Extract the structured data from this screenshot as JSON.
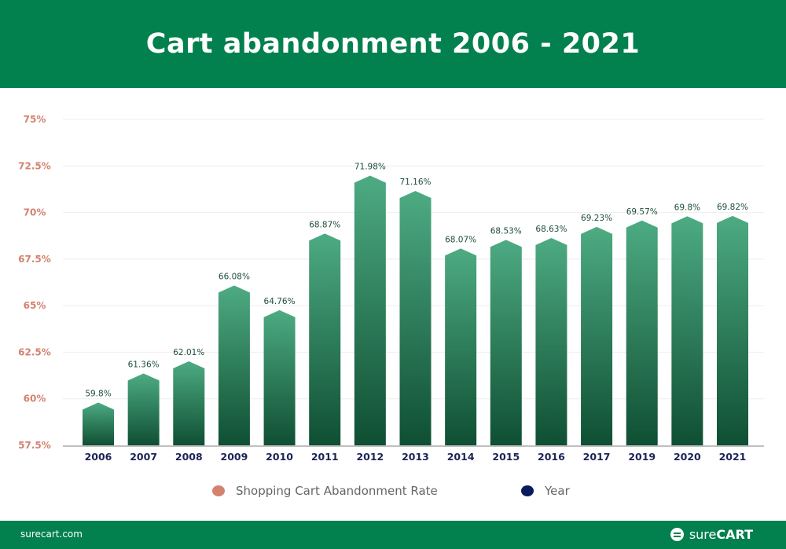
{
  "title": "Cart abandonment 2006 - 2021",
  "chart_data": {
    "type": "bar",
    "title": "Cart abandonment 2006 - 2021",
    "categories": [
      "2006",
      "2007",
      "2008",
      "2009",
      "2010",
      "2011",
      "2012",
      "2013",
      "2014",
      "2015",
      "2016",
      "2017",
      "2019",
      "2020",
      "2021"
    ],
    "values": [
      59.8,
      61.36,
      62.01,
      66.08,
      64.76,
      68.87,
      71.98,
      71.16,
      68.07,
      68.53,
      68.63,
      69.23,
      69.57,
      69.8,
      69.82
    ],
    "data_labels": [
      "59.8%",
      "61.36%",
      "62.01%",
      "66.08%",
      "64.76%",
      "68.87%",
      "71.98%",
      "71.16%",
      "68.07%",
      "68.53%",
      "68.63%",
      "69.23%",
      "69.57%",
      "69.8%",
      "69.82%"
    ],
    "ylim": [
      57.5,
      75
    ],
    "yticks": [
      57.5,
      60,
      62.5,
      65,
      67.5,
      70,
      72.5,
      75
    ],
    "ytick_labels": [
      "57.5%",
      "60%",
      "62.5%",
      "65%",
      "67.5%",
      "70%",
      "72.5%",
      "75%"
    ],
    "grid": true,
    "legend_position": "bottom",
    "legend": [
      {
        "label": "Shopping Cart Abandonment Rate",
        "color": "#d4826e"
      },
      {
        "label": "Year",
        "color": "#0b1a5c"
      }
    ],
    "colors": {
      "bar_top": "#4dab82",
      "bar_bottom": "#0f4f33",
      "ytick": "#d4826e",
      "xtick": "#1c2456",
      "label": "#1e4d3a"
    }
  },
  "footer": {
    "site": "surecart.com",
    "logo_light": "sure",
    "logo_bold": "CART"
  }
}
